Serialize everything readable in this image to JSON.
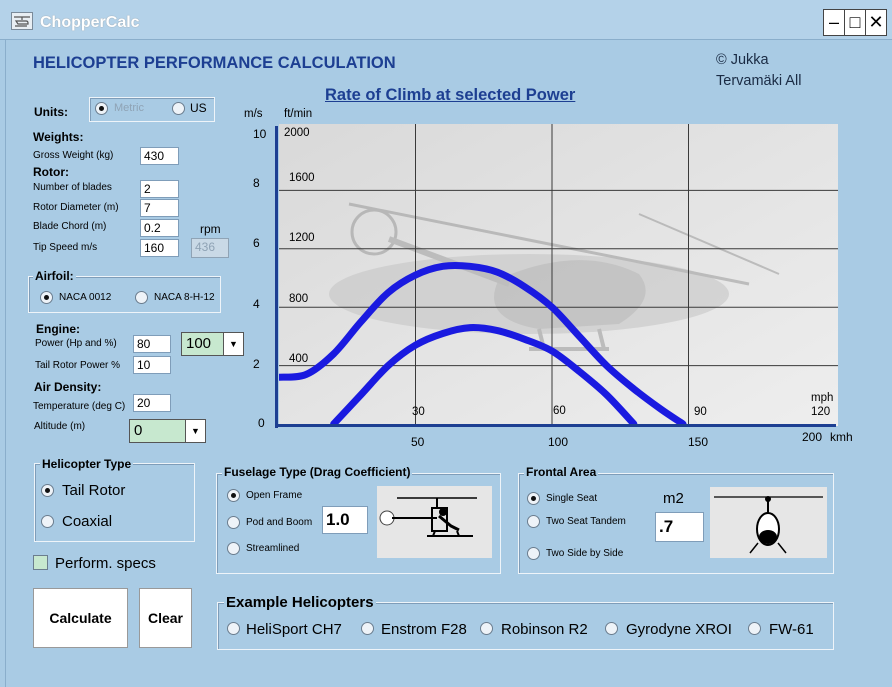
{
  "window": {
    "title": "ChopperCalc"
  },
  "main_title": "HELICOPTER PERFORMANCE CALCULATION",
  "copyright": {
    "line1": "© Jukka",
    "line2": "Tervamäki All"
  },
  "units": {
    "label": "Units:",
    "options": [
      "Metric",
      "US"
    ],
    "selected": "Metric"
  },
  "weights": {
    "header": "Weights:",
    "gross_label": "Gross Weight (kg)",
    "gross_value": "430"
  },
  "rotor": {
    "header": "Rotor:",
    "blades_label": "Number of blades",
    "blades_value": "2",
    "diameter_label": "Rotor Diameter (m)",
    "diameter_value": "7",
    "chord_label": "Blade Chord (m)",
    "chord_value": "0.2",
    "rpm_label": "rpm",
    "tip_label": "Tip Speed m/s",
    "tip_value": "160",
    "rpm_value": "436"
  },
  "airfoil": {
    "label": "Airfoil:",
    "options": [
      "NACA 0012",
      "NACA 8-H-12"
    ],
    "selected": "NACA 0012"
  },
  "engine": {
    "header": "Engine:",
    "power_label": "Power (Hp and %)",
    "power_value": "80",
    "power_percent": "100",
    "tail_label": "Tail Rotor Power %",
    "tail_value": "10"
  },
  "air": {
    "header": "Air Density:",
    "temp_label": "Temperature (deg C)",
    "temp_value": "20",
    "alt_label": "Altitude (m)",
    "alt_value": "0"
  },
  "heli_type": {
    "label": "Helicopter Type",
    "options": [
      "Tail Rotor",
      "Coaxial"
    ],
    "selected": "Tail Rotor"
  },
  "perf_specs": {
    "label": "Perform. specs",
    "checked": false
  },
  "buttons": {
    "calculate": "Calculate",
    "clear": "Clear"
  },
  "fuselage": {
    "label": "Fuselage Type (Drag Coefficient)",
    "options": [
      "Open Frame",
      "Pod and Boom",
      "Streamlined"
    ],
    "selected": "Open Frame",
    "value": "1.0"
  },
  "frontal": {
    "label": "Frontal Area",
    "options": [
      "Single Seat",
      "Two Seat Tandem",
      "Two Side by Side"
    ],
    "selected": "Single Seat",
    "unit": "m2",
    "value": ".7"
  },
  "examples": {
    "label": "Example Helicopters",
    "items": [
      "HeliSport CH7",
      "Enstrom F28",
      "Robinson R2",
      "Gyrodyne XROI",
      "FW-61"
    ]
  },
  "chart_data": {
    "type": "line",
    "title": "Rate of Climb at selected Power",
    "ylabel": "m/s",
    "ylabel2": "ft/min",
    "y_ticks": [
      "0",
      "2",
      "4",
      "6",
      "8",
      "10"
    ],
    "y2_ticks": [
      "400",
      "800",
      "1200",
      "1600",
      "2000"
    ],
    "x_unit_top": "mph",
    "x_unit_bottom": "kmh",
    "x_ticks_mph": [
      "30",
      "60",
      "90",
      "120"
    ],
    "x_ticks_kmh": [
      "50",
      "100",
      "150",
      "200"
    ],
    "ylim": [
      0,
      10
    ],
    "xlim_kmh": [
      0,
      200
    ],
    "grid": true,
    "series": [
      {
        "x": [
          0,
          10,
          20,
          30,
          40,
          50,
          60,
          70,
          80,
          90,
          100,
          110,
          120,
          130,
          140,
          148
        ],
        "y": [
          1.6,
          1.7,
          2.4,
          3.5,
          4.5,
          5.1,
          5.4,
          5.4,
          5.2,
          4.7,
          4.0,
          3.0,
          2.0,
          1.2,
          0.5,
          0.0
        ]
      },
      {
        "x": [
          20,
          30,
          40,
          50,
          60,
          70,
          80,
          90,
          100,
          110,
          120,
          130
        ],
        "y": [
          0.0,
          1.0,
          2.0,
          2.7,
          3.1,
          3.3,
          3.2,
          2.9,
          2.5,
          1.8,
          1.0,
          0.0
        ]
      }
    ]
  }
}
